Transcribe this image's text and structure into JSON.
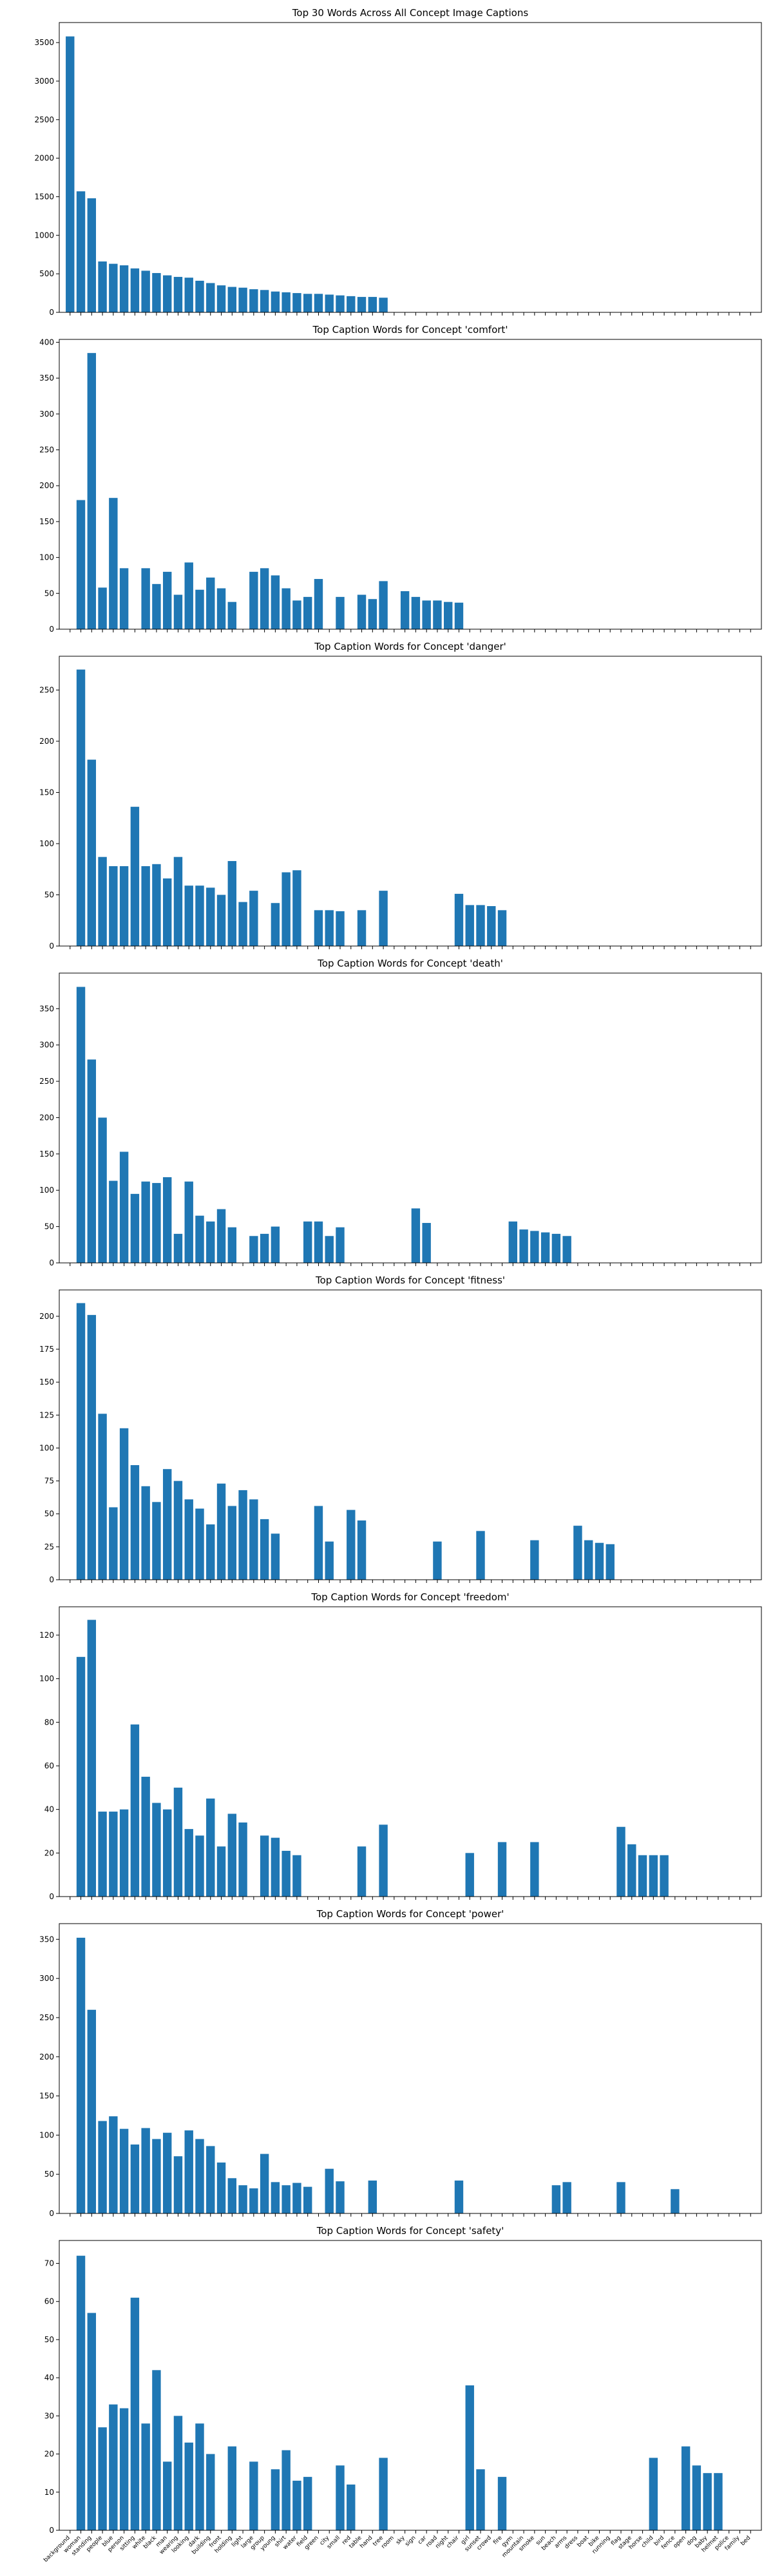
{
  "chart_data": [
    {
      "type": "bar",
      "title": "Top 30 Words Across All Concept Image Captions",
      "color": "#1f77b4",
      "ylim": [
        0,
        3760
      ],
      "yticks": [
        0,
        500,
        1000,
        1500,
        2000,
        2500,
        3000,
        3500
      ],
      "values": [
        3580,
        1570,
        1480,
        660,
        630,
        610,
        570,
        540,
        510,
        480,
        460,
        450,
        410,
        380,
        350,
        330,
        320,
        300,
        290,
        270,
        260,
        250,
        240,
        240,
        230,
        220,
        210,
        200,
        200,
        190,
        null,
        null,
        null,
        null,
        null,
        null,
        null,
        null,
        null,
        null,
        null,
        null,
        null,
        null,
        null,
        null,
        null,
        null,
        null,
        null,
        null,
        null,
        null,
        null,
        null,
        null,
        null,
        null,
        null,
        null,
        null,
        null,
        null,
        null
      ]
    },
    {
      "type": "bar",
      "title": "Top Caption Words for Concept 'comfort'",
      "color": "#1f77b4",
      "ylim": [
        0,
        404
      ],
      "yticks": [
        0,
        50,
        100,
        150,
        200,
        250,
        300,
        350,
        400
      ],
      "values": [
        null,
        180,
        385,
        58,
        183,
        85,
        null,
        85,
        63,
        80,
        48,
        93,
        55,
        72,
        57,
        38,
        null,
        80,
        85,
        75,
        57,
        40,
        45,
        70,
        null,
        45,
        null,
        48,
        42,
        67,
        null,
        53,
        45,
        40,
        40,
        38,
        37,
        null,
        null,
        null,
        null,
        null,
        null,
        null,
        null,
        null,
        null,
        null,
        null,
        null,
        null,
        null,
        null,
        null,
        null,
        null,
        null,
        null,
        null,
        null,
        null,
        null,
        null,
        null
      ]
    },
    {
      "type": "bar",
      "title": "Top Caption Words for Concept 'danger'",
      "color": "#1f77b4",
      "ylim": [
        0,
        283
      ],
      "yticks": [
        0,
        50,
        100,
        150,
        200,
        250
      ],
      "values": [
        null,
        270,
        182,
        87,
        78,
        78,
        136,
        78,
        80,
        66,
        87,
        59,
        59,
        57,
        50,
        83,
        43,
        54,
        null,
        42,
        72,
        74,
        null,
        35,
        35,
        34,
        null,
        35,
        null,
        54,
        null,
        null,
        null,
        null,
        null,
        null,
        51,
        40,
        40,
        39,
        35,
        null,
        null,
        null,
        null,
        null,
        null,
        null,
        null,
        null,
        null,
        null,
        null,
        null,
        null,
        null,
        null,
        null,
        null,
        null,
        null,
        null,
        null,
        null
      ]
    },
    {
      "type": "bar",
      "title": "Top Caption Words for Concept 'death'",
      "color": "#1f77b4",
      "ylim": [
        0,
        399
      ],
      "yticks": [
        0,
        50,
        100,
        150,
        200,
        250,
        300,
        350
      ],
      "values": [
        null,
        380,
        280,
        200,
        113,
        153,
        95,
        112,
        110,
        118,
        40,
        112,
        65,
        57,
        74,
        49,
        null,
        37,
        40,
        50,
        null,
        null,
        57,
        57,
        37,
        49,
        null,
        null,
        null,
        null,
        null,
        null,
        75,
        55,
        null,
        null,
        null,
        null,
        null,
        null,
        null,
        57,
        46,
        44,
        42,
        40,
        37,
        null,
        null,
        null,
        null,
        null,
        null,
        null,
        null,
        null,
        null,
        null,
        null,
        null,
        null,
        null,
        null,
        null
      ]
    },
    {
      "type": "bar",
      "title": "Top Caption Words for Concept 'fitness'",
      "color": "#1f77b4",
      "ylim": [
        0,
        220
      ],
      "yticks": [
        0,
        25,
        50,
        75,
        100,
        125,
        150,
        175,
        200
      ],
      "values": [
        null,
        210,
        201,
        126,
        55,
        115,
        87,
        71,
        59,
        84,
        75,
        61,
        54,
        42,
        73,
        56,
        68,
        61,
        46,
        35,
        null,
        null,
        null,
        56,
        29,
        null,
        53,
        45,
        null,
        null,
        null,
        null,
        null,
        null,
        29,
        null,
        null,
        null,
        37,
        null,
        null,
        null,
        null,
        30,
        null,
        null,
        null,
        41,
        30,
        28,
        27,
        null,
        null,
        null,
        null,
        null,
        null,
        null,
        null,
        null,
        null,
        null,
        null,
        null
      ]
    },
    {
      "type": "bar",
      "title": "Top Caption Words for Concept 'freedom'",
      "color": "#1f77b4",
      "ylim": [
        0,
        133
      ],
      "yticks": [
        0,
        20,
        40,
        60,
        80,
        100,
        120
      ],
      "values": [
        null,
        110,
        127,
        39,
        39,
        40,
        79,
        55,
        43,
        40,
        50,
        31,
        28,
        45,
        23,
        38,
        34,
        null,
        28,
        27,
        21,
        19,
        null,
        null,
        null,
        null,
        null,
        23,
        null,
        33,
        null,
        null,
        null,
        null,
        null,
        null,
        null,
        20,
        null,
        null,
        25,
        null,
        null,
        25,
        null,
        null,
        null,
        null,
        null,
        null,
        null,
        32,
        24,
        19,
        19,
        19,
        null,
        null,
        null,
        null,
        null,
        null,
        null,
        null
      ]
    },
    {
      "type": "bar",
      "title": "Top Caption Words for Concept 'power'",
      "color": "#1f77b4",
      "ylim": [
        0,
        370
      ],
      "yticks": [
        0,
        50,
        100,
        150,
        200,
        250,
        300,
        350
      ],
      "values": [
        null,
        352,
        260,
        118,
        124,
        108,
        88,
        109,
        95,
        103,
        73,
        106,
        95,
        86,
        65,
        45,
        36,
        32,
        76,
        40,
        36,
        39,
        34,
        null,
        57,
        41,
        null,
        null,
        42,
        null,
        null,
        null,
        null,
        null,
        null,
        null,
        42,
        null,
        null,
        null,
        null,
        null,
        null,
        null,
        null,
        36,
        40,
        null,
        null,
        null,
        null,
        40,
        null,
        null,
        null,
        null,
        31,
        null,
        null,
        null,
        null,
        null,
        null,
        null
      ]
    },
    {
      "type": "bar",
      "title": "Top Caption Words for Concept 'safety'",
      "color": "#1f77b4",
      "ylim": [
        0,
        76
      ],
      "yticks": [
        0,
        10,
        20,
        30,
        40,
        50,
        60,
        70
      ],
      "categories": [
        "background",
        "woman",
        "standing",
        "people",
        "blue",
        "person",
        "sitting",
        "white",
        "black",
        "man",
        "wearing",
        "looking",
        "dark",
        "building",
        "front",
        "holding",
        "light",
        "large",
        "group",
        "young",
        "shirt",
        "water",
        "field",
        "green",
        "city",
        "small",
        "red",
        "table",
        "hand",
        "tree",
        "room",
        "sky",
        "sign",
        "car",
        "road",
        "night",
        "chair",
        "girl",
        "sunset",
        "crowd",
        "fire",
        "gym",
        "mountain",
        "smoke",
        "sun",
        "beach",
        "arms",
        "dress",
        "boat",
        "bike",
        "running",
        "flag",
        "stage",
        "horse",
        "child",
        "bird",
        "fence",
        "open",
        "dog",
        "baby",
        "helmet",
        "police",
        "family",
        "bed"
      ],
      "values": [
        null,
        72,
        57,
        27,
        33,
        32,
        61,
        28,
        42,
        18,
        30,
        23,
        28,
        20,
        null,
        22,
        null,
        18,
        null,
        16,
        21,
        13,
        14,
        null,
        null,
        17,
        12,
        null,
        null,
        19,
        null,
        null,
        null,
        null,
        null,
        null,
        null,
        38,
        16,
        null,
        14,
        null,
        null,
        null,
        null,
        null,
        null,
        null,
        null,
        null,
        null,
        null,
        null,
        null,
        19,
        null,
        null,
        22,
        17,
        15,
        15,
        null,
        null,
        null
      ]
    }
  ]
}
